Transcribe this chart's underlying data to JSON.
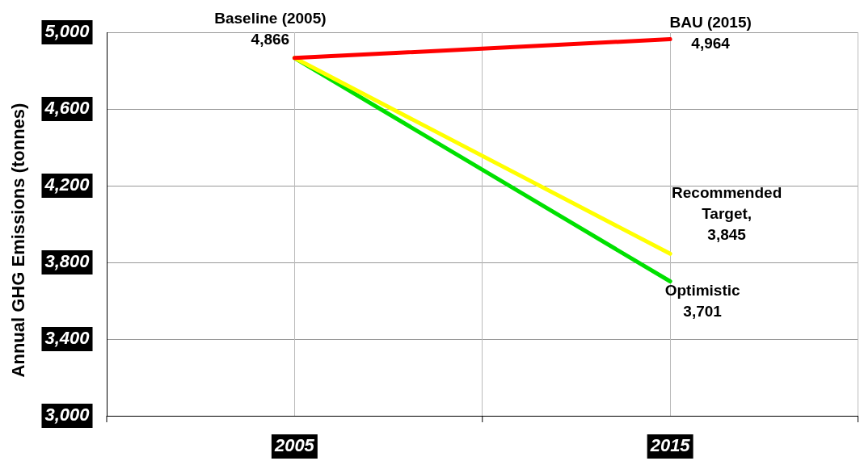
{
  "chart_data": {
    "type": "line",
    "ylabel": "Annual GHG Emissions (tonnes)",
    "x": [
      2005,
      2015
    ],
    "series": [
      {
        "color": "#ff0000",
        "values": [
          4866,
          4964
        ]
      },
      {
        "color": "#ffff00",
        "values": [
          4866,
          3845
        ]
      },
      {
        "color": "#00e000",
        "values": [
          4866,
          3701
        ]
      }
    ],
    "xlim": [
      2000,
      2020
    ],
    "xticks": [
      {
        "value": 2000,
        "label": null
      },
      {
        "value": 2005,
        "label": "2005"
      },
      {
        "value": 2010,
        "label": null
      },
      {
        "value": 2015,
        "label": "2015"
      },
      {
        "value": 2020,
        "label": null
      }
    ],
    "ylim": [
      3000,
      5000
    ],
    "yticks": [
      {
        "value": 3000,
        "label": "3,000"
      },
      {
        "value": 3400,
        "label": "3,400"
      },
      {
        "value": 3800,
        "label": "3,800"
      },
      {
        "value": 4200,
        "label": "4,200"
      },
      {
        "value": 4600,
        "label": "4,600"
      },
      {
        "value": 5000,
        "label": "5,000"
      }
    ],
    "grid": true,
    "marker": "none",
    "line_style": "solid",
    "annotations": [
      "Baseline (2005)\n4,866",
      "BAU (2015)\n4,964",
      "Recommended\nTarget,\n3,845",
      "Optimistic\n3,701"
    ]
  }
}
